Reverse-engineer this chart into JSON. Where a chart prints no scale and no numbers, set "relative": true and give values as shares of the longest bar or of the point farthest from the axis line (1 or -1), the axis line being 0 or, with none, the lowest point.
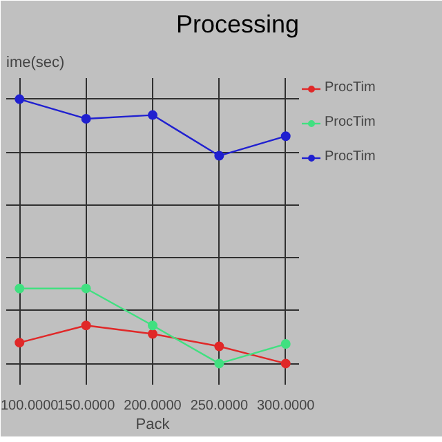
{
  "chart_data": {
    "type": "line",
    "title": "Processing",
    "ylabel": "ime(sec)",
    "xlabel": "Pack",
    "relative": true,
    "x": [
      100,
      150,
      200,
      250,
      300
    ],
    "xlim": [
      90,
      310
    ],
    "xticks": [
      {
        "value": 100,
        "label": "100.0000"
      },
      {
        "value": 150,
        "label": "150.0000"
      },
      {
        "value": 200,
        "label": "200.0000"
      },
      {
        "value": 250,
        "label": "250.0000"
      },
      {
        "value": 300,
        "label": "300.0000"
      }
    ],
    "series": [
      {
        "name": "ProcTim",
        "color": "#e02828",
        "values": [
          0.079,
          0.144,
          0.112,
          0.065,
          0.0
        ]
      },
      {
        "name": "ProcTim",
        "color": "#40e080",
        "values": [
          0.284,
          0.284,
          0.144,
          0.0,
          0.074
        ]
      },
      {
        "name": "ProcTim",
        "color": "#2020d0",
        "values": [
          1.0,
          0.926,
          0.94,
          0.786,
          0.86
        ]
      }
    ],
    "grid": true,
    "legend": "right",
    "marker": "circle",
    "line_style": "solid"
  }
}
